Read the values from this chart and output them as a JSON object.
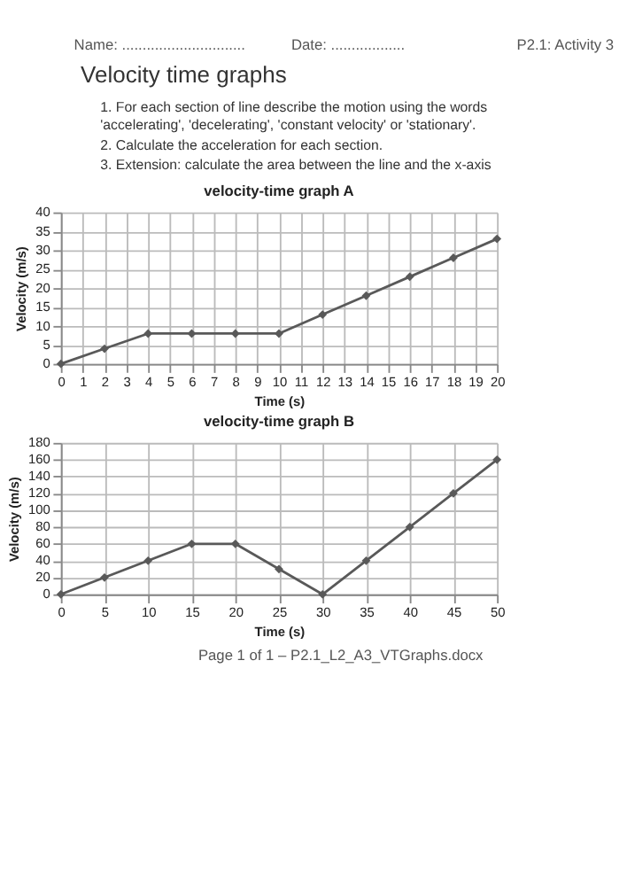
{
  "chart_data": [
    {
      "type": "line",
      "title": "velocity-time graph A",
      "xlabel": "Time (s)",
      "ylabel": "Velocity (m/s)",
      "x": [
        0,
        2,
        4,
        6,
        8,
        10,
        12,
        14,
        16,
        18,
        20
      ],
      "values": [
        0,
        4,
        8,
        8,
        8,
        8,
        13,
        18,
        23,
        28,
        33
      ],
      "color": "#595959",
      "xlim": [
        0,
        20
      ],
      "xticks": [
        0,
        1,
        2,
        3,
        4,
        5,
        6,
        7,
        8,
        9,
        10,
        11,
        12,
        13,
        14,
        15,
        16,
        17,
        18,
        19,
        20
      ],
      "ylim": [
        0,
        40
      ],
      "yticks": [
        0,
        5,
        10,
        15,
        20,
        25,
        30,
        35,
        40
      ],
      "grid": true,
      "marker": "diamond",
      "line_style": "solid",
      "annotations": [
        "Name: ..............................",
        "Date: ..................",
        "P2.1: Activity 3",
        "Velocity time graphs",
        "1. For each section of line describe the motion using the words 'accelerating', 'decelerating', 'constant velocity' or 'stationary'.",
        "2. Calculate the acceleration for each section.",
        "3. Extension: calculate the area between the line and the x-axis"
      ]
    },
    {
      "type": "line",
      "title": "velocity-time graph B",
      "xlabel": "Time (s)",
      "ylabel": "Velocity (m/s)",
      "x": [
        0,
        5,
        10,
        15,
        20,
        25,
        30,
        35,
        40,
        45,
        50
      ],
      "values": [
        0,
        20,
        40,
        60,
        60,
        30,
        0,
        40,
        80,
        120,
        160
      ],
      "color": "#595959",
      "xlim": [
        0,
        50
      ],
      "xticks": [
        0,
        5,
        10,
        15,
        20,
        25,
        30,
        35,
        40,
        45,
        50
      ],
      "ylim": [
        0,
        180
      ],
      "yticks": [
        0,
        20,
        40,
        60,
        80,
        100,
        120,
        140,
        160,
        180
      ],
      "grid": true,
      "marker": "diamond",
      "line_style": "solid",
      "annotations": [
        "Page 1 of 1 – P2.1_L2_A3_VTGraphs.docx"
      ]
    }
  ]
}
